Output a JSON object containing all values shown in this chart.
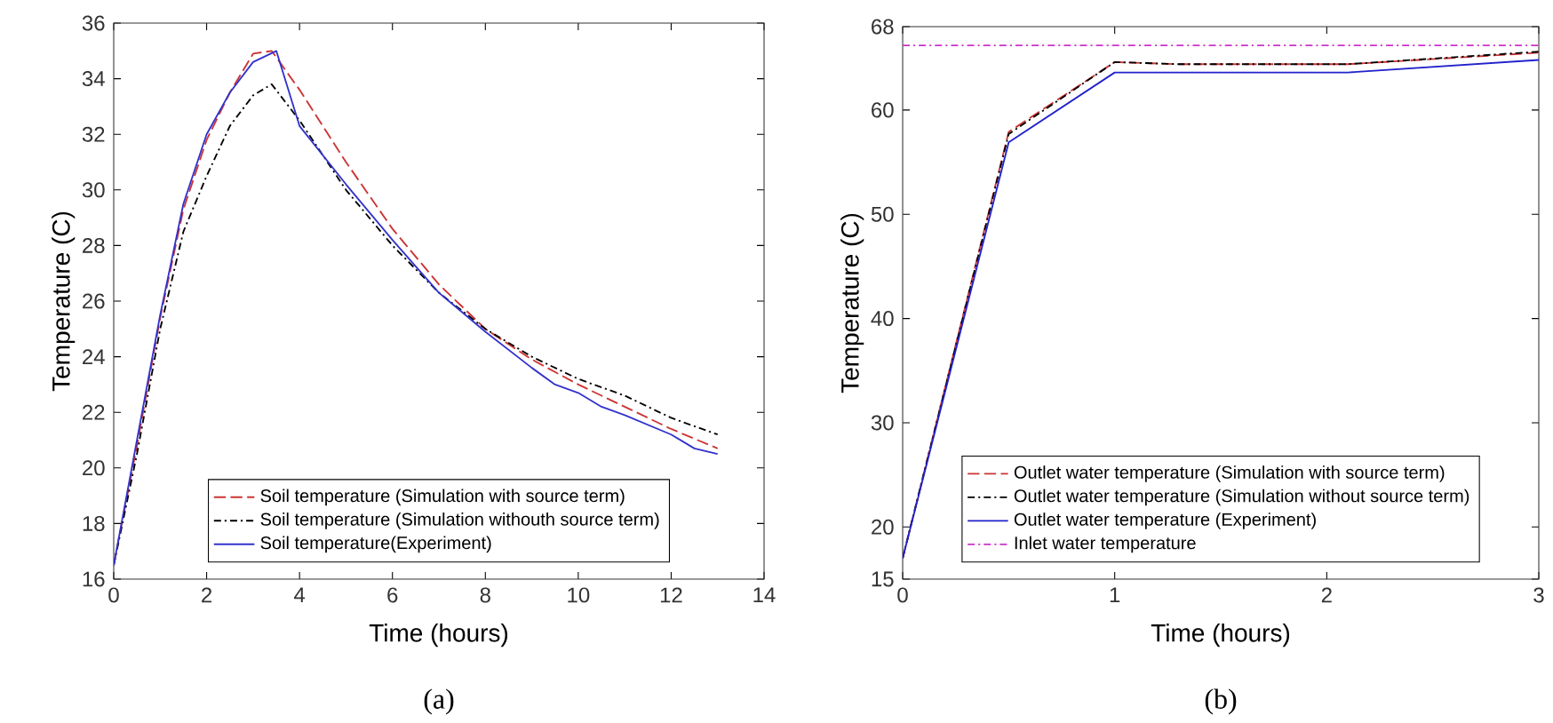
{
  "chart_data": [
    {
      "type": "line",
      "xlabel": "Time (hours)",
      "ylabel": "Temperature (C)",
      "xlim": [
        0,
        14
      ],
      "ylim": [
        16,
        36
      ],
      "xticks": [
        0,
        2,
        4,
        6,
        8,
        10,
        12,
        14
      ],
      "yticks": [
        16,
        18,
        20,
        22,
        24,
        26,
        28,
        30,
        32,
        34,
        36
      ],
      "legend": "bottom",
      "annotations": [
        "(a)"
      ],
      "series": [
        {
          "name": "Soil temperature (Simulation with source term)",
          "color": "#cc3333",
          "line_style": "dashed",
          "x": [
            0,
            0.5,
            1,
            1.5,
            2,
            2.5,
            3,
            3.4,
            4,
            5,
            6,
            7,
            8,
            9,
            10,
            11,
            12,
            13
          ],
          "values": [
            16.5,
            20.8,
            25.4,
            29.3,
            31.8,
            33.5,
            34.9,
            35,
            33.6,
            31,
            28.6,
            26.6,
            25,
            23.9,
            23.0,
            22.2,
            21.4,
            20.7
          ]
        },
        {
          "name": "Soil temperature (Simulation withouth source term)",
          "color": "#000000",
          "line_style": "dashdot",
          "x": [
            0,
            0.5,
            1,
            1.5,
            2,
            2.5,
            3,
            3.4,
            4,
            5,
            6,
            7,
            8,
            9,
            10,
            11,
            12,
            13
          ],
          "values": [
            16.5,
            20.5,
            25,
            28.5,
            30.5,
            32.3,
            33.4,
            33.8,
            32.5,
            30,
            28,
            26.3,
            25,
            24,
            23.2,
            22.6,
            21.8,
            21.2
          ]
        },
        {
          "name": "Soil temperature(Experiment)",
          "color": "#3333cc",
          "line_style": "solid",
          "x": [
            0,
            0.5,
            1,
            1.5,
            2,
            2.5,
            3,
            3.5,
            4,
            5,
            6,
            7,
            8,
            9,
            9.5,
            10,
            10.5,
            11,
            12,
            12.5,
            13
          ],
          "values": [
            16.5,
            21,
            25.5,
            29.5,
            32,
            33.5,
            34.6,
            35,
            32.3,
            30.2,
            28.2,
            26.3,
            24.9,
            23.6,
            23,
            22.7,
            22.2,
            21.9,
            21.2,
            20.7,
            20.5
          ]
        }
      ]
    },
    {
      "type": "line",
      "xlabel": "Time (hours)",
      "ylabel": "Temperature (C)",
      "xlim": [
        0,
        3
      ],
      "ylim": [
        15,
        68
      ],
      "xticks": [
        0,
        1,
        2,
        3
      ],
      "yticks": [
        15,
        20,
        30,
        40,
        50,
        60,
        68
      ],
      "legend": "bottom",
      "annotations": [
        "(b)"
      ],
      "series": [
        {
          "name": "Outlet water temperature (Simulation with source term)",
          "color": "#cc3333",
          "line_style": "dashed",
          "x": [
            0,
            0.5,
            1,
            1.3,
            2.1,
            3
          ],
          "values": [
            17,
            57.9,
            64.6,
            64.4,
            64.4,
            65.5
          ]
        },
        {
          "name": "Outlet water temperature (Simulation without source term)",
          "color": "#000000",
          "line_style": "dashdot",
          "x": [
            0,
            0.5,
            1,
            1.3,
            2.1,
            3
          ],
          "values": [
            17,
            57.7,
            64.6,
            64.4,
            64.4,
            65.6
          ]
        },
        {
          "name": "Outlet water temperature (Experiment)",
          "color": "#2222cc",
          "line_style": "solid",
          "x": [
            0,
            0.5,
            1,
            2.1,
            3
          ],
          "values": [
            17,
            56.9,
            63.6,
            63.6,
            64.8
          ]
        },
        {
          "name": "Inlet water temperature",
          "color": "#cc33cc",
          "line_style": "dashdot",
          "x": [
            0,
            3
          ],
          "values": [
            66.2,
            66.2
          ]
        }
      ]
    }
  ]
}
